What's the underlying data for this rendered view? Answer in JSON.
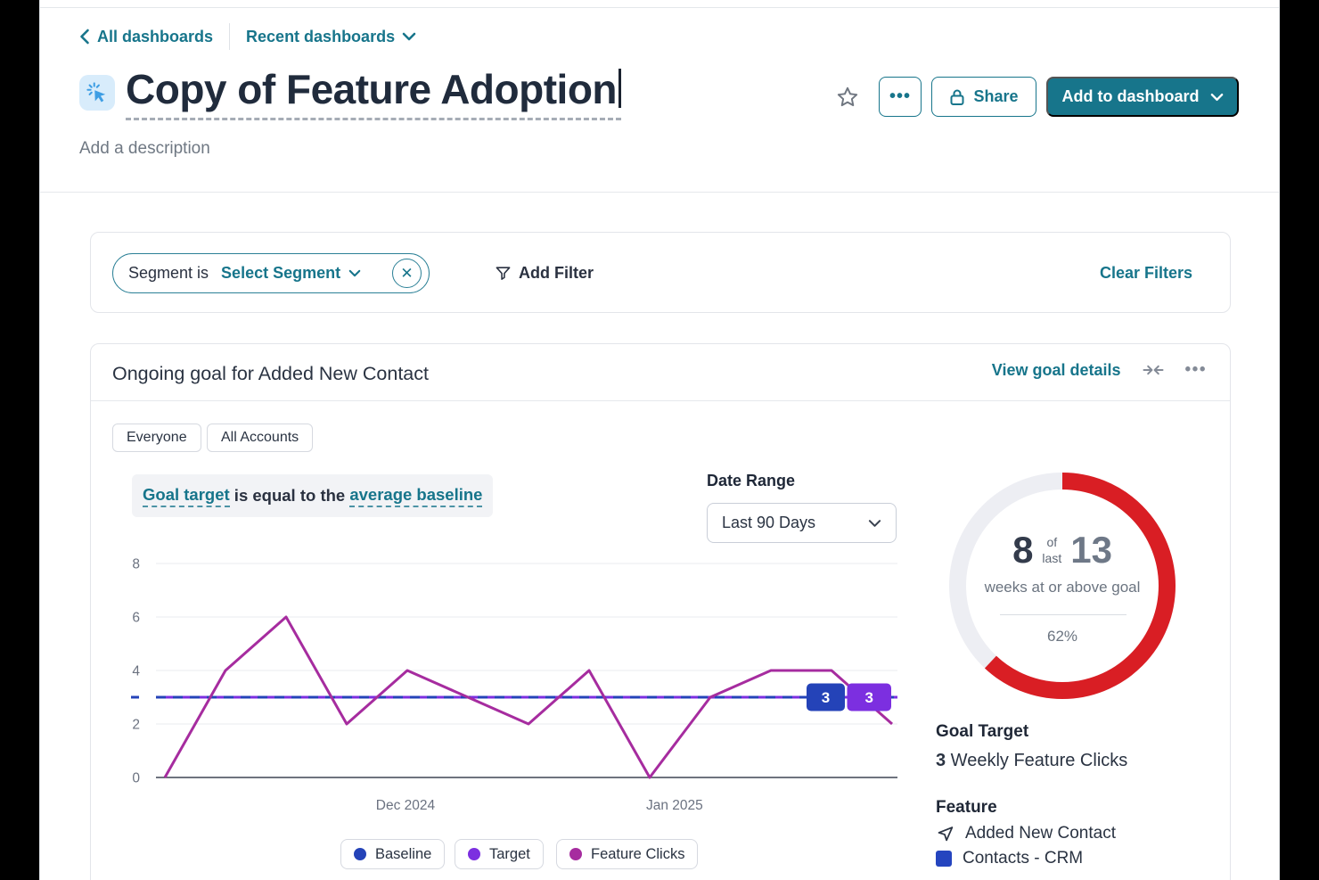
{
  "nav": {
    "back_label": "All dashboards",
    "recent_label": "Recent dashboards"
  },
  "header": {
    "title": "Copy of Feature Adoption",
    "description_placeholder": "Add a description",
    "more_label": "•••",
    "share_label": "Share",
    "add_to_dashboard_label": "Add to dashboard"
  },
  "filter_bar": {
    "segment_prefix": "Segment is",
    "segment_value": "Select Segment",
    "remove_label": "✕",
    "add_filter_label": "Add Filter",
    "clear_filters_label": "Clear Filters"
  },
  "goal_card": {
    "title": "Ongoing goal for Added New Contact",
    "view_details_label": "View goal details",
    "more_label": "•••",
    "chips": [
      {
        "label": "Everyone"
      },
      {
        "label": "All Accounts"
      }
    ],
    "sentence": {
      "goal_target_link": "Goal target",
      "middle_text": " is equal to the ",
      "baseline_link": "average baseline"
    },
    "date_range": {
      "label": "Date Range",
      "value": "Last 90 Days"
    },
    "summary": {
      "goal_target_label": "Goal Target",
      "goal_target_value": "3",
      "goal_target_unit": " Weekly Feature Clicks",
      "feature_label": "Feature",
      "feature_name": "Added New Contact",
      "feature_source": "Contacts - CRM"
    }
  },
  "donut": {
    "achieved": "8",
    "of_word": "of",
    "last_word": "last",
    "total": "13",
    "caption": "weeks at or above goal",
    "percent": 62,
    "percent_label": "62%",
    "progress_color": "#d91e24",
    "track_color": "#edeef3"
  },
  "chart_data": {
    "type": "line",
    "title": "Ongoing goal for Added New Contact — weekly feature clicks vs goal",
    "x_unit": "week",
    "weeks": 13,
    "x_tick_labels": [
      {
        "label": "Dec 2024",
        "week_index": 3.97
      },
      {
        "label": "Jan 2025",
        "week_index": 8.41
      }
    ],
    "ylim": [
      0,
      8
    ],
    "yticks": [
      0,
      2,
      4,
      6,
      8
    ],
    "grid": true,
    "legend_position": "bottom",
    "series": [
      {
        "name": "Baseline",
        "type": "hline",
        "value": 3,
        "style": "dashed",
        "color": "#2443b8",
        "end_label": "3"
      },
      {
        "name": "Target",
        "type": "hline",
        "value": 3,
        "style": "solid",
        "color": "#7c2fe0",
        "end_label": "3"
      },
      {
        "name": "Feature Clicks",
        "type": "line",
        "style": "solid",
        "color": "#a62c9f",
        "values": [
          0,
          4,
          6,
          2,
          4,
          3,
          2,
          4,
          0,
          3,
          4,
          4,
          2
        ]
      }
    ]
  }
}
